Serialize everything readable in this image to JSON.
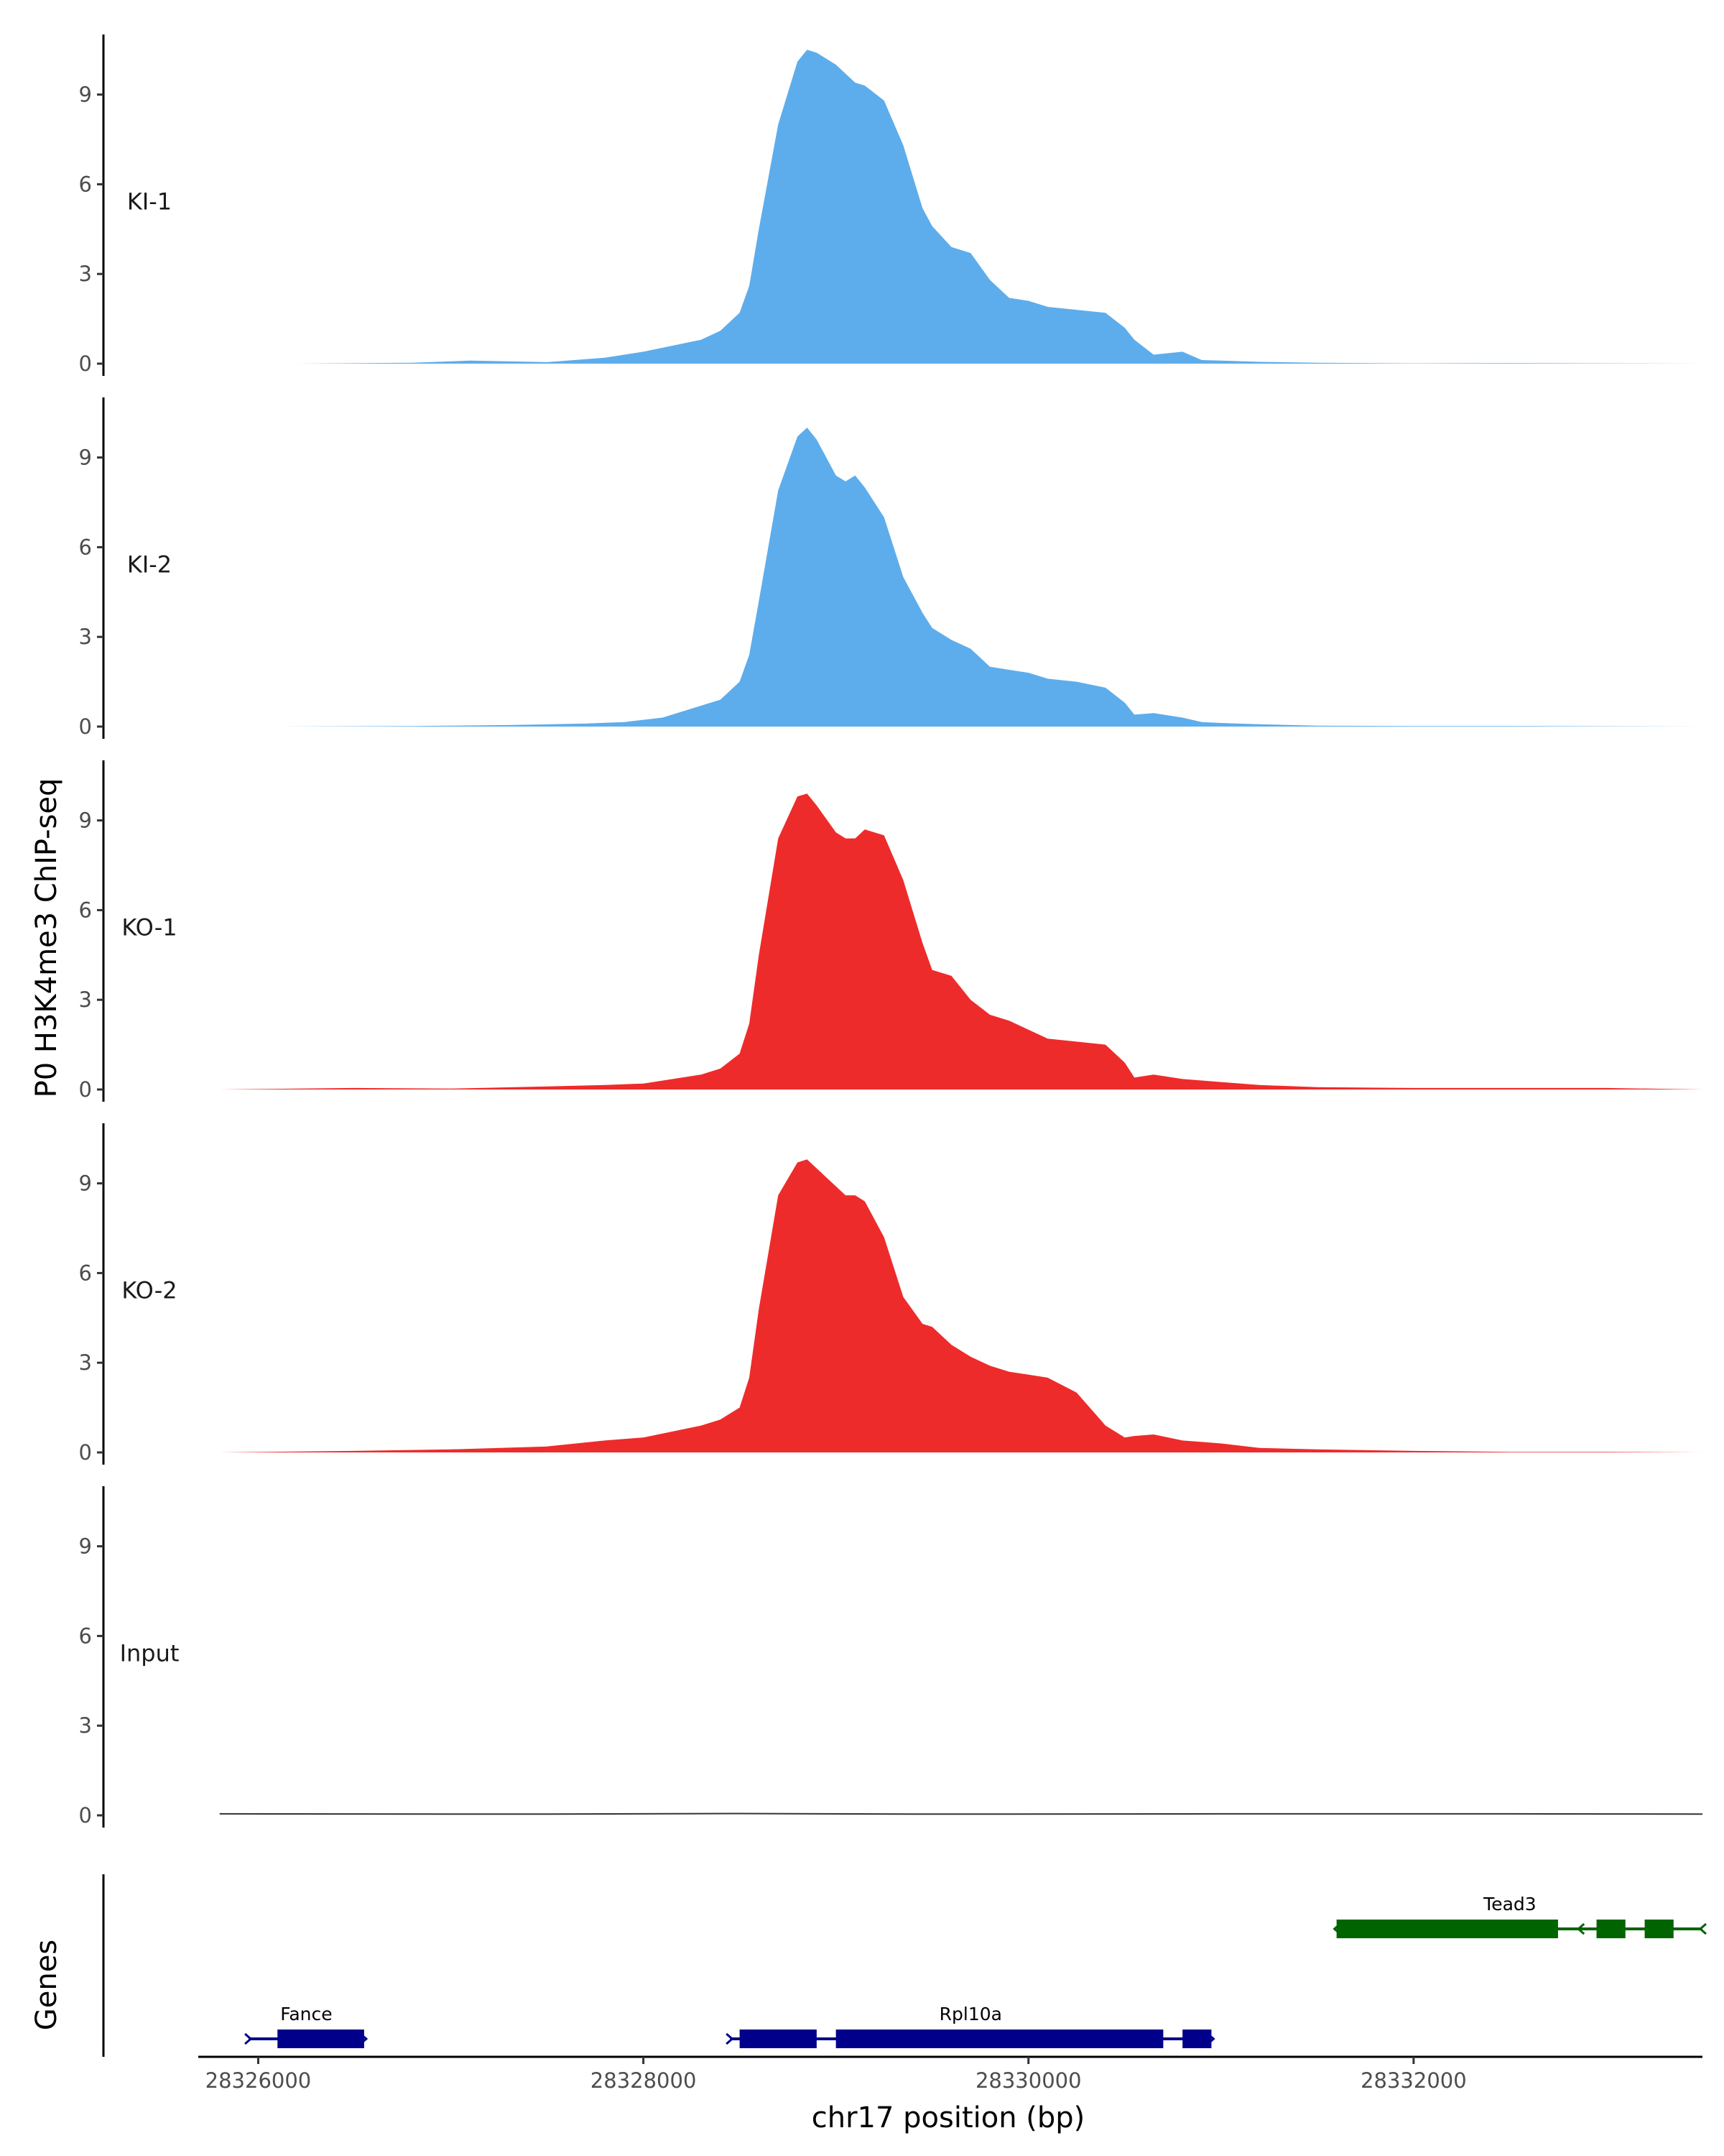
{
  "chart_data": {
    "type": "area",
    "ylabel": "P0 H3K4me3 ChIP-seq",
    "xlabel": "chr17 position (bp)",
    "xlim": [
      28325200,
      28333500
    ],
    "ylim": [
      0,
      11
    ],
    "y_ticks": [
      0,
      3,
      6,
      9
    ],
    "x_ticks": [
      28326000,
      28328000,
      28330000,
      28332000
    ],
    "x_tick_labels": [
      "28326000",
      "28328000",
      "28330000",
      "28332000"
    ],
    "grid": false,
    "gene_track_label": "Genes",
    "tracks": [
      {
        "label": "KI-1",
        "color": "#5DADEC",
        "x": [
          28326200,
          28326800,
          28327100,
          28327500,
          28327800,
          28328000,
          28328300,
          28328400,
          28328500,
          28328550,
          28328600,
          28328700,
          28328800,
          28328850,
          28328900,
          28329000,
          28329050,
          28329100,
          28329150,
          28329250,
          28329350,
          28329450,
          28329500,
          28329600,
          28329700,
          28329800,
          28329900,
          28330000,
          28330100,
          28330250,
          28330400,
          28330500,
          28330550,
          28330650,
          28330800,
          28330900,
          28331000,
          28331200,
          28331500,
          28332000,
          28332500,
          28333000,
          28333500
        ],
        "values": [
          0,
          0.03,
          0.1,
          0.05,
          0.2,
          0.4,
          0.8,
          1.1,
          1.7,
          2.6,
          4.5,
          8.0,
          10.1,
          10.5,
          10.4,
          10.0,
          9.7,
          9.4,
          9.3,
          8.8,
          7.3,
          5.2,
          4.6,
          3.9,
          3.7,
          2.8,
          2.2,
          2.1,
          1.9,
          1.8,
          1.7,
          1.2,
          0.8,
          0.3,
          0.4,
          0.12,
          0.1,
          0.06,
          0.03,
          0.01,
          0.02,
          0.01,
          0.0
        ]
      },
      {
        "label": "KI-2",
        "color": "#5DADEC",
        "x": [
          28326100,
          28326800,
          28327300,
          28327700,
          28327900,
          28328100,
          28328300,
          28328400,
          28328500,
          28328550,
          28328600,
          28328700,
          28328800,
          28328850,
          28328900,
          28329000,
          28329050,
          28329100,
          28329150,
          28329250,
          28329350,
          28329450,
          28329500,
          28329600,
          28329700,
          28329800,
          28329900,
          28330000,
          28330100,
          28330250,
          28330400,
          28330500,
          28330550,
          28330650,
          28330800,
          28330900,
          28331000,
          28331200,
          28331500,
          28332000,
          28332500,
          28333000,
          28333500
        ],
        "values": [
          0,
          0.02,
          0.05,
          0.1,
          0.15,
          0.3,
          0.7,
          0.9,
          1.5,
          2.4,
          4.2,
          7.9,
          9.7,
          10.0,
          9.6,
          8.4,
          8.2,
          8.4,
          8.0,
          7.0,
          5.0,
          3.8,
          3.3,
          2.9,
          2.6,
          2.0,
          1.9,
          1.8,
          1.6,
          1.5,
          1.3,
          0.8,
          0.4,
          0.45,
          0.3,
          0.15,
          0.12,
          0.08,
          0.03,
          0.02,
          0.02,
          0.01,
          0.0
        ]
      },
      {
        "label": "KO-1",
        "color": "#EE2B2B",
        "x": [
          28325800,
          28326500,
          28327000,
          28327500,
          28327800,
          28328000,
          28328300,
          28328400,
          28328500,
          28328550,
          28328600,
          28328700,
          28328800,
          28328850,
          28328900,
          28329000,
          28329050,
          28329100,
          28329150,
          28329250,
          28329350,
          28329450,
          28329500,
          28329600,
          28329700,
          28329800,
          28329900,
          28330000,
          28330100,
          28330250,
          28330400,
          28330500,
          28330550,
          28330650,
          28330800,
          28330900,
          28331000,
          28331200,
          28331500,
          28332000,
          28332500,
          28333000,
          28333500
        ],
        "values": [
          0,
          0.05,
          0.03,
          0.1,
          0.15,
          0.2,
          0.5,
          0.7,
          1.2,
          2.2,
          4.5,
          8.4,
          9.8,
          9.9,
          9.5,
          8.6,
          8.4,
          8.4,
          8.7,
          8.5,
          7.0,
          4.9,
          4.0,
          3.8,
          3.0,
          2.5,
          2.3,
          2.0,
          1.7,
          1.6,
          1.5,
          0.9,
          0.4,
          0.5,
          0.35,
          0.3,
          0.25,
          0.15,
          0.08,
          0.05,
          0.05,
          0.05,
          0.0
        ]
      },
      {
        "label": "KO-2",
        "color": "#EE2B2B",
        "x": [
          28325800,
          28326500,
          28327000,
          28327500,
          28327800,
          28328000,
          28328300,
          28328400,
          28328500,
          28328550,
          28328600,
          28328700,
          28328800,
          28328850,
          28328900,
          28329000,
          28329050,
          28329100,
          28329150,
          28329250,
          28329350,
          28329450,
          28329500,
          28329600,
          28329700,
          28329800,
          28329900,
          28330000,
          28330100,
          28330250,
          28330400,
          28330500,
          28330550,
          28330650,
          28330800,
          28330900,
          28331000,
          28331200,
          28331500,
          28332000,
          28332500,
          28333000,
          28333500
        ],
        "values": [
          0,
          0.05,
          0.1,
          0.2,
          0.4,
          0.5,
          0.9,
          1.1,
          1.5,
          2.5,
          4.8,
          8.6,
          9.7,
          9.8,
          9.5,
          8.9,
          8.6,
          8.6,
          8.4,
          7.2,
          5.2,
          4.3,
          4.2,
          3.6,
          3.2,
          2.9,
          2.7,
          2.6,
          2.5,
          2.0,
          0.9,
          0.5,
          0.55,
          0.6,
          0.4,
          0.35,
          0.3,
          0.15,
          0.1,
          0.05,
          0.02,
          0.02,
          0.0
        ]
      },
      {
        "label": "Input",
        "color": "#333333",
        "x": [
          28325800,
          28327500,
          28328500,
          28329500,
          28331000,
          28332500,
          28333500
        ],
        "values": [
          0.05,
          0.04,
          0.06,
          0.04,
          0.05,
          0.05,
          0.04
        ]
      }
    ],
    "genes": [
      {
        "name": "Fance",
        "color": "#00008B",
        "strand": "+",
        "row": 2,
        "start": 28325950,
        "end": 28326550,
        "exons": [
          [
            28326100,
            28326550
          ]
        ],
        "label_pos": 28326250
      },
      {
        "name": "Rpl10a",
        "color": "#00008B",
        "strand": "+",
        "row": 2,
        "start": 28328450,
        "end": 28330950,
        "exons": [
          [
            28328500,
            28328900
          ],
          [
            28329000,
            28330700
          ],
          [
            28330800,
            28330950
          ]
        ],
        "label_pos": 28329700
      },
      {
        "name": "Tead3",
        "color": "#006400",
        "strand": "-",
        "row": 1,
        "start": 28331600,
        "end": 28333500,
        "exons": [
          [
            28331600,
            28332750
          ],
          [
            28332950,
            28333100
          ],
          [
            28333200,
            28333350
          ]
        ],
        "label_pos": 28332500
      }
    ]
  }
}
